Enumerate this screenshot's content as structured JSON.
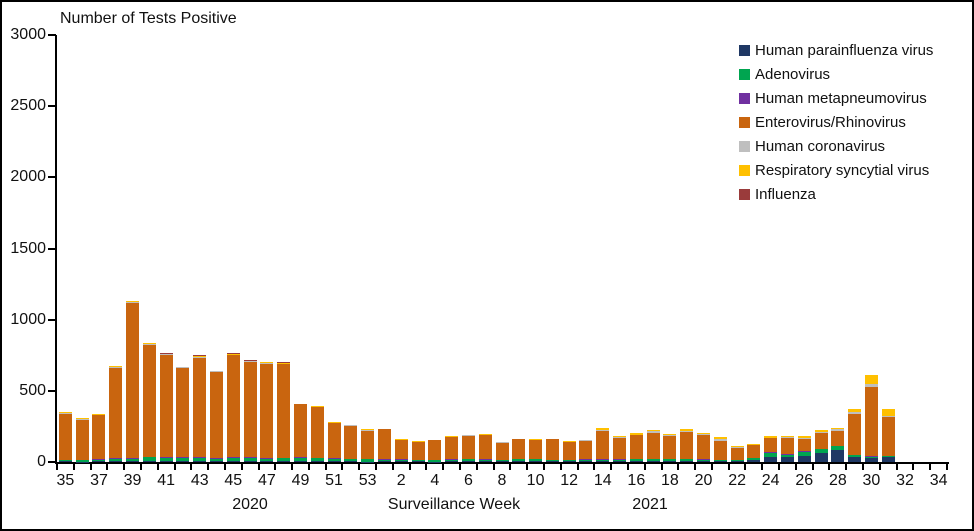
{
  "chart_data": {
    "type": "bar",
    "stacked": true,
    "title": "Number of Tests Positive",
    "xlabel": "Surveillance Week",
    "ylabel": "",
    "ylim": [
      0,
      3000
    ],
    "yticks": [
      0,
      500,
      1000,
      1500,
      2000,
      2500,
      3000
    ],
    "grid": false,
    "legend_position": "top-right-inside",
    "year_labels": [
      "2020",
      "2021"
    ],
    "weeks_2020": [
      35,
      36,
      37,
      38,
      39,
      40,
      41,
      42,
      43,
      44,
      45,
      46,
      47,
      48,
      49,
      50,
      51,
      52,
      53
    ],
    "weeks_2021": [
      1,
      2,
      3,
      4,
      5,
      6,
      7,
      8,
      9,
      10,
      11,
      12,
      13,
      14,
      15,
      16,
      17,
      18,
      19,
      20,
      21,
      22,
      23,
      24,
      25,
      26,
      27,
      28,
      29,
      30,
      31,
      32,
      33,
      34
    ],
    "xtick_labels": [
      "35",
      "37",
      "39",
      "41",
      "43",
      "45",
      "47",
      "49",
      "51",
      "53",
      "2",
      "4",
      "6",
      "8",
      "10",
      "12",
      "14",
      "16",
      "18",
      "20",
      "22",
      "24",
      "26",
      "28",
      "30",
      "32",
      "34"
    ],
    "series": [
      {
        "name": "Human parainfluenza virus",
        "color": "#1F3864",
        "values": [
          5,
          3,
          5,
          4,
          5,
          8,
          10,
          6,
          8,
          6,
          5,
          8,
          6,
          5,
          6,
          5,
          4,
          4,
          3,
          4,
          5,
          4,
          3,
          5,
          4,
          5,
          4,
          8,
          6,
          5,
          4,
          5,
          5,
          5,
          6,
          5,
          6,
          8,
          6,
          5,
          4,
          15,
          37,
          33,
          40,
          60,
          85,
          33,
          28,
          33,
          0,
          0,
          0
        ]
      },
      {
        "name": "Adenovirus",
        "color": "#00A550",
        "values": [
          12,
          10,
          10,
          20,
          18,
          25,
          20,
          22,
          18,
          15,
          25,
          20,
          18,
          20,
          25,
          20,
          18,
          15,
          15,
          12,
          10,
          10,
          12,
          12,
          15,
          12,
          10,
          12,
          12,
          10,
          10,
          12,
          10,
          12,
          15,
          15,
          12,
          10,
          10,
          8,
          8,
          10,
          28,
          19,
          32,
          28,
          26,
          14,
          10,
          10,
          0,
          0,
          0
        ]
      },
      {
        "name": "Human metapneumovirus",
        "color": "#7030A0",
        "values": [
          0,
          0,
          3,
          3,
          5,
          5,
          6,
          5,
          8,
          6,
          4,
          5,
          6,
          6,
          4,
          5,
          3,
          3,
          2,
          3,
          3,
          2,
          2,
          3,
          2,
          3,
          2,
          2,
          2,
          2,
          2,
          2,
          3,
          2,
          2,
          2,
          2,
          2,
          2,
          2,
          2,
          2,
          2,
          2,
          2,
          2,
          2,
          2,
          2,
          2,
          0,
          0,
          0
        ]
      },
      {
        "name": "Enterovirus/Rhinovirus",
        "color": "#C9650F",
        "values": [
          320,
          285,
          310,
          635,
          1090,
          785,
          715,
          630,
          700,
          605,
          715,
          670,
          660,
          655,
          370,
          355,
          248,
          232,
          200,
          210,
          138,
          126,
          135,
          155,
          165,
          170,
          120,
          138,
          135,
          143,
          124,
          130,
          197,
          150,
          165,
          185,
          160,
          190,
          170,
          130,
          85,
          90,
          100,
          115,
          90,
          115,
          105,
          290,
          490,
          270,
          0,
          0,
          0
        ]
      },
      {
        "name": "Human coronavirus",
        "color": "#BFBFBF",
        "values": [
          8,
          5,
          4,
          5,
          5,
          5,
          5,
          4,
          6,
          5,
          6,
          5,
          6,
          5,
          3,
          5,
          4,
          3,
          3,
          3,
          2,
          2,
          2,
          3,
          2,
          3,
          2,
          3,
          3,
          3,
          3,
          4,
          10,
          5,
          5,
          8,
          8,
          10,
          12,
          15,
          6,
          4,
          5,
          5,
          5,
          8,
          12,
          12,
          15,
          10,
          0,
          0,
          0
        ]
      },
      {
        "name": "Respiratory syncytial virus",
        "color": "#FFC000",
        "values": [
          5,
          7,
          3,
          8,
          7,
          12,
          5,
          3,
          5,
          3,
          4,
          3,
          5,
          4,
          2,
          5,
          3,
          3,
          7,
          3,
          2,
          1,
          1,
          2,
          2,
          2,
          2,
          2,
          2,
          2,
          2,
          2,
          15,
          6,
          12,
          10,
          7,
          10,
          5,
          15,
          10,
          4,
          13,
          6,
          16,
          12,
          10,
          19,
          65,
          45,
          0,
          0,
          0
        ]
      },
      {
        "name": "Influenza",
        "color": "#9A3B3B",
        "values": [
          0,
          0,
          0,
          0,
          0,
          0,
          4,
          0,
          5,
          0,
          6,
          4,
          4,
          5,
          0,
          0,
          0,
          0,
          0,
          0,
          0,
          0,
          0,
          0,
          0,
          0,
          0,
          0,
          0,
          0,
          0,
          0,
          0,
          5,
          0,
          0,
          0,
          0,
          0,
          0,
          0,
          0,
          0,
          0,
          0,
          0,
          0,
          0,
          0,
          0,
          0,
          0,
          0
        ]
      }
    ]
  }
}
